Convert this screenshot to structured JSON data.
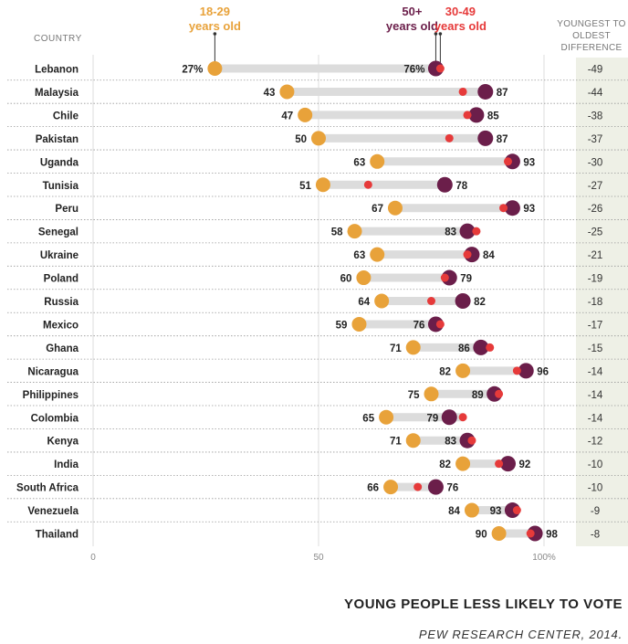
{
  "chart_data": {
    "type": "dot",
    "title": "",
    "country_header": "COUNTRY",
    "difference_header": [
      "YOUNGEST TO",
      "OLDEST",
      "DIFFERENCE"
    ],
    "series": [
      {
        "name": "18-29",
        "name_sub": "years old",
        "color": "#e8a23a"
      },
      {
        "name": "30-49",
        "name_sub": "years old",
        "color": "#e63a3a"
      },
      {
        "name": "50+",
        "name_sub": "years old",
        "color": "#6b1e4a"
      }
    ],
    "xlim": [
      0,
      100
    ],
    "x_ticks": [
      "0",
      "50",
      "100%"
    ],
    "rows": [
      {
        "country": "Lebanon",
        "young": 27,
        "middle": 77,
        "old": 76,
        "young_label": "27%",
        "old_label": "76%",
        "diff": "-49"
      },
      {
        "country": "Malaysia",
        "young": 43,
        "middle": 82,
        "old": 87,
        "young_label": "43",
        "old_label": "87",
        "diff": "-44"
      },
      {
        "country": "Chile",
        "young": 47,
        "middle": 83,
        "old": 85,
        "young_label": "47",
        "old_label": "85",
        "diff": "-38"
      },
      {
        "country": "Pakistan",
        "young": 50,
        "middle": 79,
        "old": 87,
        "young_label": "50",
        "old_label": "87",
        "diff": "-37"
      },
      {
        "country": "Uganda",
        "young": 63,
        "middle": 92,
        "old": 93,
        "young_label": "63",
        "old_label": "93",
        "diff": "-30"
      },
      {
        "country": "Tunisia",
        "young": 51,
        "middle": 61,
        "old": 78,
        "young_label": "51",
        "old_label": "78",
        "diff": "-27"
      },
      {
        "country": "Peru",
        "young": 67,
        "middle": 91,
        "old": 93,
        "young_label": "67",
        "old_label": "93",
        "diff": "-26"
      },
      {
        "country": "Senegal",
        "young": 58,
        "middle": 85,
        "old": 83,
        "young_label": "58",
        "old_label": "83",
        "diff": "-25"
      },
      {
        "country": "Ukraine",
        "young": 63,
        "middle": 83,
        "old": 84,
        "young_label": "63",
        "old_label": "84",
        "diff": "-21"
      },
      {
        "country": "Poland",
        "young": 60,
        "middle": 78,
        "old": 79,
        "young_label": "60",
        "old_label": "79",
        "diff": "-19"
      },
      {
        "country": "Russia",
        "young": 64,
        "middle": 75,
        "old": 82,
        "young_label": "64",
        "old_label": "82",
        "diff": "-18"
      },
      {
        "country": "Mexico",
        "young": 59,
        "middle": 77,
        "old": 76,
        "young_label": "59",
        "old_label": "76",
        "diff": "-17"
      },
      {
        "country": "Ghana",
        "young": 71,
        "middle": 88,
        "old": 86,
        "young_label": "71",
        "old_label": "86",
        "diff": "-15"
      },
      {
        "country": "Nicaragua",
        "young": 82,
        "middle": 94,
        "old": 96,
        "young_label": "82",
        "old_label": "96",
        "diff": "-14"
      },
      {
        "country": "Philippines",
        "young": 75,
        "middle": 90,
        "old": 89,
        "young_label": "75",
        "old_label": "89",
        "diff": "-14"
      },
      {
        "country": "Colombia",
        "young": 65,
        "middle": 82,
        "old": 79,
        "young_label": "65",
        "old_label": "79",
        "diff": "-14"
      },
      {
        "country": "Kenya",
        "young": 71,
        "middle": 84,
        "old": 83,
        "young_label": "71",
        "old_label": "83",
        "diff": "-12"
      },
      {
        "country": "India",
        "young": 82,
        "middle": 90,
        "old": 92,
        "young_label": "82",
        "old_label": "92",
        "diff": "-10"
      },
      {
        "country": "South Africa",
        "young": 66,
        "middle": 72,
        "old": 76,
        "young_label": "66",
        "old_label": "76",
        "diff": "-10"
      },
      {
        "country": "Venezuela",
        "young": 84,
        "middle": 94,
        "old": 93,
        "young_label": "84",
        "old_label": "93",
        "diff": "-9"
      },
      {
        "country": "Thailand",
        "young": 90,
        "middle": 97,
        "old": 98,
        "young_label": "90",
        "old_label": "98",
        "diff": "-8"
      }
    ]
  },
  "footer": {
    "title": "YOUNG PEOPLE LESS LIKELY TO VOTE",
    "source": "PEW RESEARCH CENTER, 2014."
  }
}
